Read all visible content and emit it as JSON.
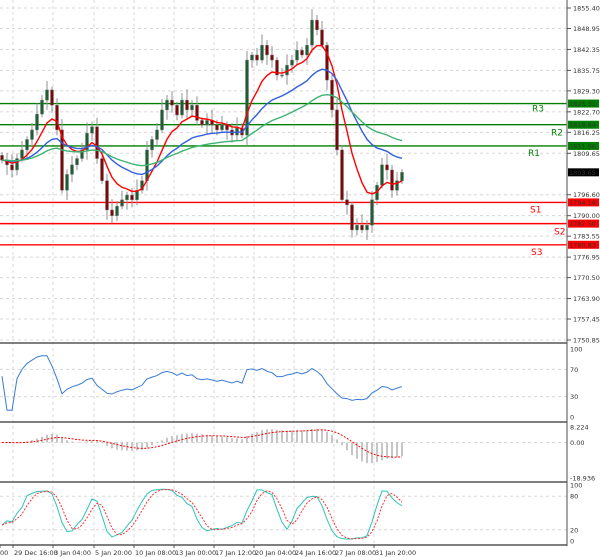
{
  "chart_data": [
    {
      "type": "candlestick",
      "panel": "price",
      "y_ticks": [
        "1855.40",
        "1848.95",
        "1842.35",
        "1835.75",
        "1829.30",
        "1822.70",
        "1816.25",
        "1809.65",
        "1796.60",
        "1790.00",
        "1783.55",
        "1776.95",
        "1770.50",
        "1763.90",
        "1757.45",
        "1750.85"
      ],
      "ylim": [
        1750.85,
        1855.4
      ],
      "current_price": "1803.65",
      "x_ticks": [
        "00",
        "29 Dec 16:00",
        "3 Jan 04:00",
        "5 Jan 20:00",
        "10 Jan 08:00",
        "13 Jan 00:00",
        "17 Jan 12:00",
        "20 Jan 04:00",
        "24 Jan 16:00",
        "27 Jan 08:00",
        "31 Jan 20:00"
      ],
      "closes": [
        1807.5,
        1806,
        1804.4,
        1808,
        1810.7,
        1814,
        1817,
        1822,
        1826.4,
        1829.6,
        1824.8,
        1817,
        1798,
        1803,
        1806,
        1808,
        1810.7,
        1816,
        1818,
        1808,
        1801,
        1791.8,
        1790,
        1793,
        1795,
        1796.5,
        1795,
        1798,
        1801,
        1810.7,
        1814,
        1817,
        1823.3,
        1826.4,
        1824.8,
        1821.7,
        1826.4,
        1823.3,
        1824.8,
        1820,
        1818.6,
        1820,
        1818.6,
        1817,
        1818.6,
        1817,
        1815.4,
        1817.6,
        1815.4,
        1839,
        1840.6,
        1839,
        1843.7,
        1840.6,
        1839,
        1834.3,
        1834.3,
        1837.4,
        1839,
        1842.1,
        1840.6,
        1843.7,
        1851.6,
        1848.5,
        1843.7,
        1832.7,
        1823.3,
        1810.7,
        1795,
        1793.4,
        1785.5,
        1787,
        1785.5,
        1787,
        1795,
        1799.6,
        1806,
        1804.4,
        1798,
        1801,
        1803.65
      ],
      "moving_averages": [
        {
          "color": "#ff0000"
        },
        {
          "color": "#3060e0"
        },
        {
          "color": "#3cb371"
        }
      ],
      "levels": [
        {
          "name": "R3",
          "value": "1825.31",
          "color": "#008000"
        },
        {
          "name": "R2",
          "value": "1818.64",
          "color": "#008000"
        },
        {
          "name": "R1",
          "value": "1811.96",
          "color": "#008000"
        },
        {
          "name": "S1",
          "value": "1794.18",
          "color": "#ff0000"
        },
        {
          "name": "S2",
          "value": "1787.50",
          "color": "#ff0000"
        },
        {
          "name": "S3",
          "value": "1780.83",
          "color": "#ff0000"
        }
      ],
      "colors": {
        "bull": "#1f5e35",
        "bear": "#7a0a0a",
        "wick": "#909090",
        "current_bg": "#000000"
      }
    },
    {
      "type": "line",
      "panel": "rsi",
      "y_ticks": [
        "100",
        "70",
        "30",
        "0"
      ],
      "ylim": [
        0,
        100
      ],
      "color": "#3a7bd5"
    },
    {
      "type": "bar",
      "panel": "macd",
      "y_ticks": [
        "8.224",
        "0.00",
        "-18.936"
      ],
      "ylim": [
        -18.936,
        8.224
      ],
      "hist_color": "#a0a0a0",
      "signal_color": "#ff0000"
    },
    {
      "type": "line",
      "panel": "stochastic",
      "y_ticks": [
        "100",
        "80",
        "20",
        "0"
      ],
      "ylim": [
        0,
        100
      ],
      "main_color": "#2ec4b6",
      "signal_color": "#ff3030"
    }
  ]
}
